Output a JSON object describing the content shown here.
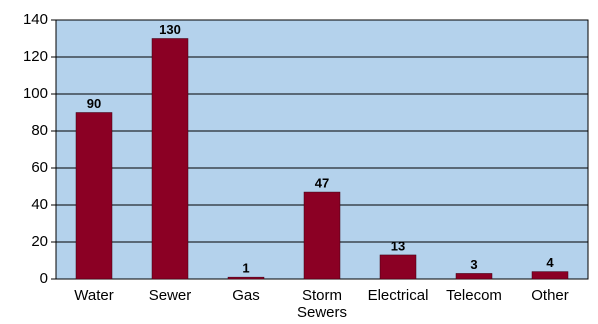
{
  "chart_data": {
    "type": "bar",
    "categories": [
      "Water",
      "Sewer",
      "Gas",
      "Storm Sewers",
      "Electrical",
      "Telecom",
      "Other"
    ],
    "values": [
      90,
      130,
      1,
      47,
      13,
      3,
      4
    ],
    "color": "#8b0024",
    "ylim": [
      0,
      140
    ],
    "yticks": [
      0,
      20,
      40,
      60,
      80,
      100,
      120,
      140
    ],
    "grid": true
  }
}
